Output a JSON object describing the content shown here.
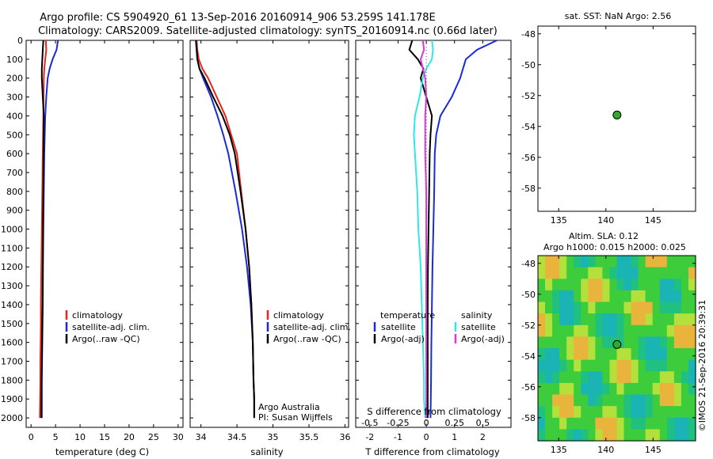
{
  "title_line1": "Argo profile: CS 5904920_61 13-Sep-2016 20160914_906 53.259S 141.178E",
  "title_line2": "Climatology: CARS2009. Satellite-adjusted climatology: synTS_20160914.nc (0.66d later)",
  "colors": {
    "climatology": "#e8261b",
    "satellite": "#1a2bd6",
    "argo": "#000000",
    "salt_satellite": "#33e6e6",
    "salt_argo": "#e033e0",
    "marker": "#2eaa2e"
  },
  "y_axis": {
    "ticks": [
      0,
      100,
      200,
      300,
      400,
      500,
      600,
      700,
      800,
      900,
      1000,
      1100,
      1200,
      1300,
      1400,
      1500,
      1600,
      1700,
      1800,
      1900,
      2000
    ],
    "ylim": [
      2050,
      0
    ]
  },
  "panels": {
    "temperature": {
      "xlabel": "temperature (deg C)",
      "xticks": [
        "0",
        "5",
        "10",
        "15",
        "20",
        "25",
        "30"
      ],
      "legend": [
        "climatology",
        "satellite-adj. clim.",
        "Argo(..raw -QC)"
      ]
    },
    "salinity": {
      "xlabel": "salinity",
      "xticks": [
        "34",
        "34.5",
        "35",
        "35.5",
        "36"
      ],
      "legend": [
        "climatology",
        "satellite-adj. clim.",
        "Argo(..raw -QC)"
      ],
      "note1": "Argo Australia",
      "note2": "PI: Susan Wijffels"
    },
    "difference": {
      "xlabel": "T difference from climatology",
      "xticks": [
        "-2",
        "-1",
        "0",
        "1",
        "2"
      ],
      "sxlabel": "S difference from climatology",
      "sxticks": [
        "-0.5",
        "-0.25",
        "0",
        "0.25",
        "0.5"
      ],
      "legend_t_head": "temperature",
      "legend_s_head": "salinity",
      "legend_t": [
        "satellite",
        "Argo(-adj)"
      ],
      "legend_s": [
        "satellite",
        "Argo(-adj)"
      ]
    },
    "sst_map": {
      "title": "sat. SST: NaN Argo: 2.56",
      "yticks": [
        "-48",
        "-50",
        "-52",
        "-54",
        "-56",
        "-58"
      ],
      "xticks": [
        "135",
        "140",
        "145"
      ]
    },
    "sla_map": {
      "title1": "Altim. SLA: 0.12",
      "title2": "Argo h1000: 0.015 h2000: 0.025",
      "yticks": [
        "-48",
        "-50",
        "-52",
        "-54",
        "-56",
        "-58"
      ],
      "xticks": [
        "135",
        "140",
        "145"
      ],
      "credit": "©IMOS 21-Sep-2016 20:39:31"
    }
  },
  "chart_data": [
    {
      "type": "line",
      "title": "",
      "xlabel": "temperature (deg C)",
      "ylabel": "",
      "xlim": [
        -1,
        31
      ],
      "ylim": [
        2050,
        0
      ],
      "series": [
        {
          "name": "climatology",
          "x": [
            3.0,
            3.1,
            2.9,
            2.7,
            2.6,
            2.55,
            2.5,
            2.4,
            2.3,
            2.2,
            2.1,
            2.0,
            2.0,
            1.95,
            1.9,
            1.9,
            1.85,
            1.8
          ],
          "y": [
            0,
            50,
            100,
            150,
            200,
            300,
            400,
            600,
            800,
            1000,
            1200,
            1400,
            1500,
            1600,
            1700,
            1800,
            1900,
            2000
          ]
        },
        {
          "name": "satellite-adj. clim.",
          "x": [
            5.5,
            5.2,
            4.4,
            3.8,
            3.4,
            3.1,
            2.9,
            2.7,
            2.6,
            2.5,
            2.45,
            2.4,
            2.35,
            2.3,
            2.25,
            2.2,
            2.2
          ],
          "y": [
            0,
            50,
            100,
            150,
            200,
            300,
            400,
            600,
            800,
            1000,
            1200,
            1400,
            1500,
            1600,
            1700,
            1800,
            2000
          ]
        },
        {
          "name": "Argo(..raw -QC)",
          "x": [
            2.5,
            2.4,
            2.3,
            2.2,
            2.2,
            2.4,
            2.6,
            2.55,
            2.5,
            2.45,
            2.4,
            2.35,
            2.3,
            2.25,
            2.2,
            2.15,
            2.1
          ],
          "y": [
            0,
            50,
            100,
            150,
            200,
            300,
            400,
            600,
            800,
            1000,
            1200,
            1400,
            1500,
            1600,
            1700,
            1800,
            2000
          ]
        }
      ]
    },
    {
      "type": "line",
      "title": "",
      "xlabel": "salinity",
      "ylabel": "",
      "xlim": [
        33.85,
        36.05
      ],
      "ylim": [
        2050,
        0
      ],
      "series": [
        {
          "name": "climatology",
          "x": [
            33.94,
            33.95,
            33.97,
            34.02,
            34.1,
            34.22,
            34.34,
            34.42,
            34.5,
            34.56,
            34.62,
            34.67,
            34.7,
            34.72,
            34.73,
            34.74,
            34.74
          ],
          "y": [
            0,
            50,
            100,
            150,
            200,
            300,
            400,
            500,
            600,
            800,
            1000,
            1200,
            1400,
            1600,
            1800,
            1900,
            2000
          ]
        },
        {
          "name": "satellite-adj. clim.",
          "x": [
            33.93,
            33.94,
            33.95,
            33.98,
            34.03,
            34.14,
            34.23,
            34.31,
            34.38,
            34.48,
            34.57,
            34.64,
            34.69,
            34.72,
            34.73,
            34.74,
            34.74
          ],
          "y": [
            0,
            50,
            100,
            150,
            200,
            300,
            400,
            500,
            600,
            800,
            1000,
            1200,
            1400,
            1600,
            1800,
            1900,
            2000
          ]
        },
        {
          "name": "Argo(..raw -QC)",
          "x": [
            33.93,
            33.94,
            33.95,
            33.98,
            34.05,
            34.17,
            34.3,
            34.4,
            34.47,
            34.55,
            34.62,
            34.67,
            34.7,
            34.72,
            34.73,
            34.74,
            34.74
          ],
          "y": [
            0,
            50,
            100,
            150,
            200,
            300,
            400,
            500,
            600,
            800,
            1000,
            1200,
            1400,
            1600,
            1800,
            1900,
            2000
          ]
        }
      ]
    },
    {
      "type": "line",
      "title": "",
      "xlabel": "T difference from climatology",
      "ylabel": "",
      "xlim": [
        -2.5,
        3.0
      ],
      "ylim": [
        2050,
        0
      ],
      "series": [
        {
          "name": "temperature satellite",
          "x": [
            2.5,
            1.8,
            1.4,
            1.3,
            1.2,
            0.9,
            0.5,
            0.35,
            0.3,
            0.28,
            0.25,
            0.22,
            0.2,
            0.18,
            0.17,
            0.16,
            0.15
          ],
          "y": [
            0,
            50,
            100,
            150,
            200,
            300,
            400,
            500,
            600,
            800,
            1000,
            1200,
            1400,
            1600,
            1800,
            1900,
            2000
          ]
        },
        {
          "name": "temperature Argo(-adj)",
          "x": [
            -0.5,
            -0.6,
            -0.3,
            -0.1,
            -0.2,
            0.0,
            0.2,
            0.15,
            0.12,
            0.1,
            0.08,
            0.06,
            0.05,
            0.05,
            0.05,
            0.05,
            0.05
          ],
          "y": [
            0,
            50,
            100,
            150,
            200,
            300,
            400,
            500,
            600,
            800,
            1000,
            1200,
            1400,
            1600,
            1800,
            1900,
            2000
          ]
        }
      ]
    },
    {
      "type": "line",
      "title": "",
      "xlabel": "S difference from climatology",
      "ylabel": "",
      "xlim": [
        -0.625,
        0.75
      ],
      "ylim": [
        2050,
        0
      ],
      "series": [
        {
          "name": "salinity satellite",
          "x": [
            0.05,
            0.06,
            0.05,
            0.0,
            -0.03,
            -0.06,
            -0.1,
            -0.11,
            -0.1,
            -0.08,
            -0.07,
            -0.05,
            -0.04,
            -0.03,
            -0.02,
            -0.02,
            -0.01
          ],
          "y": [
            0,
            50,
            100,
            150,
            200,
            300,
            400,
            500,
            600,
            800,
            1000,
            1200,
            1400,
            1600,
            1800,
            1900,
            2000
          ]
        },
        {
          "name": "salinity Argo(-adj)",
          "x": [
            -0.03,
            -0.02,
            -0.05,
            -0.03,
            -0.01,
            0.0,
            -0.01,
            -0.01,
            -0.01,
            0.0,
            0.0,
            0.0,
            0.0,
            0.0,
            0.0,
            0.0,
            0.0
          ],
          "y": [
            0,
            50,
            100,
            150,
            200,
            300,
            400,
            500,
            600,
            800,
            1000,
            1200,
            1400,
            1600,
            1800,
            1900,
            2000
          ]
        }
      ]
    },
    {
      "type": "scatter",
      "title": "sat. SST: NaN Argo: 2.56",
      "xlabel": "",
      "ylabel": "",
      "xlim": [
        132.8,
        149.5
      ],
      "ylim": [
        -59.5,
        -47.5
      ],
      "series": [
        {
          "name": "",
          "x": [
            141.178
          ],
          "y": [
            -53.259
          ]
        }
      ]
    },
    {
      "type": "heatmap",
      "title": "Altim. SLA: 0.12",
      "xlabel": "",
      "ylabel": "",
      "xlim": [
        132.8,
        149.5
      ],
      "ylim": [
        -59.5,
        -47.5
      ],
      "series": [
        {
          "name": "",
          "x": [
            141.178
          ],
          "y": [
            -53.259
          ]
        }
      ]
    }
  ]
}
